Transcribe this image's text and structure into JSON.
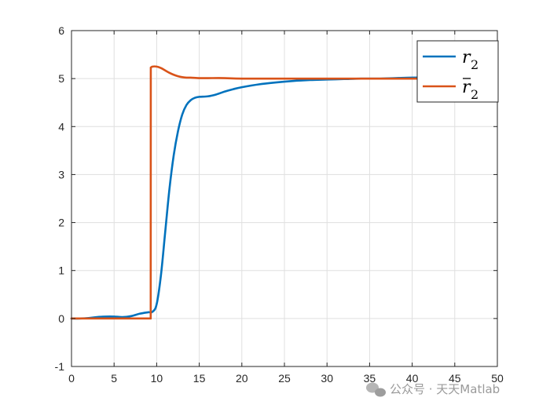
{
  "chart_data": {
    "type": "line",
    "title": "",
    "xlabel": "",
    "ylabel": "",
    "xlim": [
      0,
      50
    ],
    "ylim": [
      -1,
      6
    ],
    "xticks": [
      0,
      5,
      10,
      15,
      20,
      25,
      30,
      35,
      40,
      45,
      50
    ],
    "yticks": [
      -1,
      0,
      1,
      2,
      3,
      4,
      5,
      6
    ],
    "grid": true,
    "legend_position": "top-right",
    "series": [
      {
        "name": "r_2",
        "color": "#0072BD",
        "x": [
          0,
          1,
          2,
          3,
          4,
          5,
          6,
          7,
          8,
          9,
          9.5,
          10,
          10.5,
          11,
          11.5,
          12,
          12.5,
          13,
          13.5,
          14,
          14.5,
          15,
          16,
          17,
          18,
          19,
          20,
          22,
          24,
          26,
          28,
          30,
          32,
          34,
          36,
          38,
          40,
          42,
          44,
          46,
          48,
          50
        ],
        "y": [
          0,
          0,
          0.01,
          0.03,
          0.04,
          0.04,
          0.03,
          0.05,
          0.1,
          0.13,
          0.14,
          0.3,
          0.9,
          1.8,
          2.7,
          3.4,
          3.9,
          4.25,
          4.45,
          4.55,
          4.6,
          4.62,
          4.63,
          4.67,
          4.73,
          4.78,
          4.82,
          4.88,
          4.92,
          4.95,
          4.97,
          4.98,
          4.99,
          5.0,
          5.0,
          5.01,
          5.02,
          5.02,
          5.01,
          5.0,
          5.0,
          5.0
        ]
      },
      {
        "name": "r̄_2",
        "color": "#D95319",
        "x": [
          0,
          9.3,
          9.31,
          9.5,
          10,
          10.5,
          11,
          11.5,
          12,
          12.5,
          13,
          13.5,
          14,
          15,
          16,
          18,
          20,
          25,
          30,
          35,
          40,
          45,
          50
        ],
        "y": [
          0,
          0,
          5.23,
          5.25,
          5.25,
          5.22,
          5.17,
          5.12,
          5.08,
          5.05,
          5.03,
          5.02,
          5.02,
          5.01,
          5.01,
          5.01,
          5.0,
          5.0,
          5.0,
          5.0,
          5.0,
          5.0,
          5.0
        ]
      }
    ]
  },
  "legend": {
    "entries": [
      {
        "symbol": "r",
        "sub": "2",
        "bar": false,
        "color": "#0072BD"
      },
      {
        "symbol": "r",
        "sub": "2",
        "bar": true,
        "color": "#D95319"
      }
    ]
  },
  "watermark": {
    "text": "公众号 · 天天Matlab",
    "icon": "wechat-icon"
  }
}
